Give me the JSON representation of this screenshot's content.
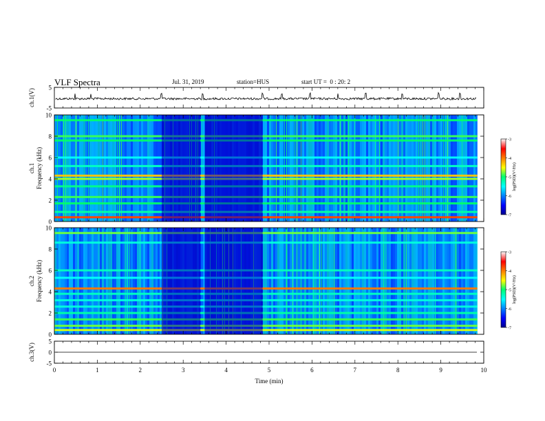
{
  "header": {
    "title": "VLF Spectra",
    "date": "Jul. 31, 2019",
    "station": "station=HUS",
    "start_ut": "start UT =  0 : 20: 2"
  },
  "chart_data": {
    "type": "heatmap",
    "x_axis": {
      "label": "Time (min)",
      "range": [
        0,
        10
      ],
      "ticks": [
        "0",
        "1",
        "2",
        "3",
        "4",
        "5",
        "6",
        "7",
        "8",
        "9",
        "10"
      ]
    },
    "panels": [
      {
        "id": "ch1-waveform",
        "kind": "line",
        "ylabel": "ch.1(V)",
        "ylim": [
          -5,
          5
        ],
        "yticks": [
          "5",
          "-5"
        ],
        "baseline_value": -0.5,
        "spikes_min": [
          0.48,
          0.85,
          2.48,
          2.5,
          3.45,
          4.85,
          5.3,
          5.95,
          6.6,
          7.25,
          8.1,
          8.95,
          9.45
        ]
      },
      {
        "id": "ch1-spectrogram",
        "kind": "heatmap",
        "ylabel": "ch.1\nFrequency (kHz)",
        "ylim": [
          0,
          10
        ],
        "yticks": [
          "0",
          "2",
          "4",
          "6",
          "8",
          "10"
        ],
        "data_end_min": 9.85,
        "bands_khz": [
          {
            "f": 0.4,
            "level": -3.8
          },
          {
            "f": 0.9,
            "level": -5.2
          },
          {
            "f": 1.7,
            "level": -5.0
          },
          {
            "f": 2.3,
            "level": -4.9
          },
          {
            "f": 3.3,
            "level": -5.1
          },
          {
            "f": 4.0,
            "level": -4.7
          },
          {
            "f": 4.3,
            "level": -4.3
          },
          {
            "f": 5.2,
            "level": -5.3
          },
          {
            "f": 6.0,
            "level": -5.5
          },
          {
            "f": 7.6,
            "level": -5.0
          },
          {
            "f": 8.0,
            "level": -4.9
          },
          {
            "f": 9.5,
            "level": -5.0
          }
        ],
        "quiet_intervals_min": [
          [
            2.5,
            3.4
          ],
          [
            3.5,
            4.85
          ]
        ],
        "colorbar": {
          "label": "log(PSD)(V²/Hz)",
          "range": [
            -7,
            -3
          ],
          "ticks": [
            "-3",
            "-4",
            "-5",
            "-6",
            "-7"
          ]
        }
      },
      {
        "id": "ch2-spectrogram",
        "kind": "heatmap",
        "ylabel": "ch.2\nFrequency (kHz)",
        "ylim": [
          0,
          10
        ],
        "yticks": [
          "0",
          "2",
          "4",
          "6",
          "8",
          "10"
        ],
        "data_end_min": 9.85,
        "bands_khz": [
          {
            "f": 0.4,
            "level": -4.6
          },
          {
            "f": 0.8,
            "level": -4.8
          },
          {
            "f": 1.4,
            "level": -4.9
          },
          {
            "f": 2.0,
            "level": -5.2
          },
          {
            "f": 2.6,
            "level": -5.4
          },
          {
            "f": 3.2,
            "level": -5.4
          },
          {
            "f": 3.8,
            "level": -5.3
          },
          {
            "f": 4.3,
            "level": -4.0
          },
          {
            "f": 5.3,
            "level": -5.5
          },
          {
            "f": 6.0,
            "level": -5.3
          },
          {
            "f": 8.6,
            "level": -5.4
          },
          {
            "f": 9.5,
            "level": -4.8
          }
        ],
        "quiet_intervals_min": [
          [
            2.5,
            3.4
          ],
          [
            3.5,
            4.85
          ]
        ],
        "colorbar": {
          "label": "log(PSD)(V²/Hz)",
          "range": [
            -7,
            -3
          ],
          "ticks": [
            "-3",
            "-4",
            "-5",
            "-6",
            "-7"
          ]
        }
      },
      {
        "id": "ch3-waveform",
        "kind": "line",
        "ylabel": "ch.3(V)",
        "ylim": [
          -5,
          5
        ],
        "yticks": [
          "5",
          "0",
          "-5"
        ],
        "baseline_value": 0
      }
    ]
  }
}
